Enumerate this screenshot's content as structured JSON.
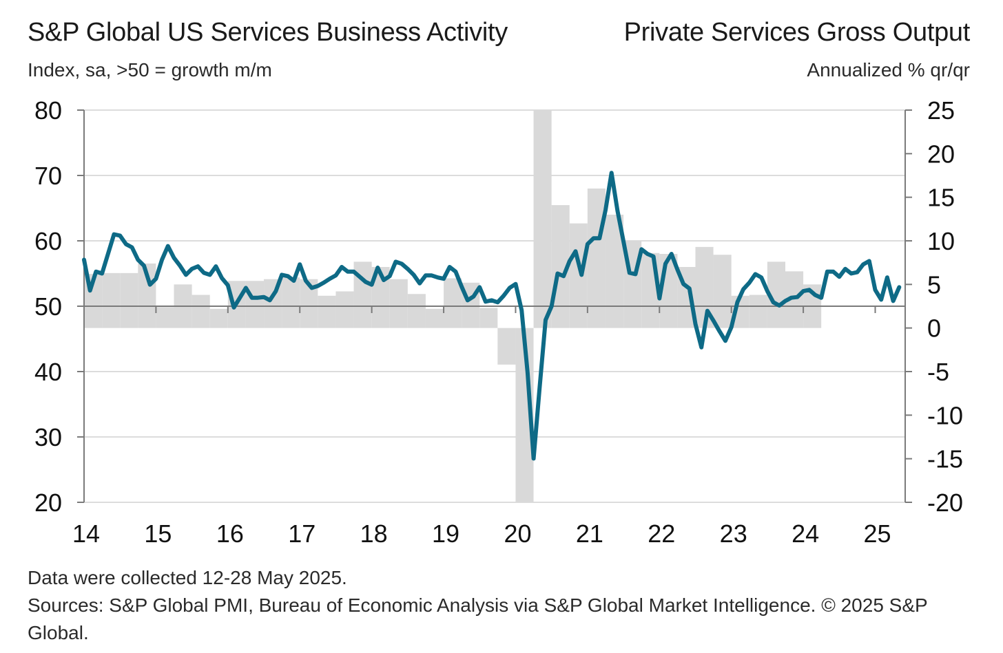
{
  "header": {
    "title_left": "S&P Global US Services Business Activity",
    "subtitle_left": "Index, sa, >50 = growth m/m",
    "title_right": "Private Services Gross Output",
    "subtitle_right": "Annualized % qr/qr"
  },
  "footer": {
    "note": "Data were collected 12-28 May 2025.",
    "sources": "Sources: S&P Global PMI, Bureau of Economic Analysis via S&P Global Market Intelligence. © 2025 S&P Global."
  },
  "colors": {
    "line": "#0e6a86",
    "bars": "#d9d9d9",
    "axis": "#7a7a7a",
    "grid": "#d0d0d0"
  },
  "chart_data": {
    "type": "line",
    "x_ticks": [
      "14",
      "15",
      "16",
      "17",
      "18",
      "19",
      "20",
      "21",
      "22",
      "23",
      "24",
      "25"
    ],
    "y_left": {
      "min": 20,
      "max": 80,
      "ticks": [
        20,
        30,
        40,
        50,
        60,
        70,
        80
      ]
    },
    "y_right": {
      "min": -20,
      "max": 25,
      "ticks": [
        -20,
        -15,
        -10,
        -5,
        0,
        5,
        10,
        15,
        20,
        25
      ]
    },
    "grid": true,
    "series": [
      {
        "axis": "right",
        "type": "bar",
        "frequency": "quarterly",
        "start": "2014Q1",
        "values": [
          6.2,
          6.3,
          6.3,
          7.4,
          2.4,
          5.0,
          3.8,
          2.2,
          5.4,
          5.4,
          5.6,
          5.8,
          5.6,
          3.7,
          4.2,
          7.6,
          7.0,
          5.6,
          3.9,
          2.2,
          5.7,
          5.2,
          2.3,
          -4.2,
          -20.0,
          25.0,
          14.1,
          12.0,
          16.0,
          13.0,
          10.0,
          8.6,
          8.5,
          7.0,
          9.3,
          8.4,
          3.7,
          3.8,
          7.6,
          6.5,
          5.0
        ]
      },
      {
        "axis": "left",
        "type": "line",
        "frequency": "monthly",
        "start": "2014-01",
        "values": [
          57.1,
          52.4,
          55.3,
          55.0,
          58.0,
          61.0,
          60.8,
          59.5,
          59.0,
          57.1,
          56.2,
          53.3,
          54.2,
          57.1,
          59.2,
          57.4,
          56.2,
          54.8,
          55.7,
          56.1,
          55.1,
          54.8,
          56.1,
          54.3,
          53.2,
          49.8,
          51.3,
          52.8,
          51.3,
          51.3,
          51.4,
          50.9,
          52.3,
          54.8,
          54.6,
          53.9,
          56.4,
          53.9,
          52.8,
          53.1,
          53.6,
          54.2,
          54.7,
          56.0,
          55.3,
          55.3,
          54.5,
          53.7,
          53.3,
          55.9,
          54.0,
          54.6,
          56.8,
          56.5,
          55.7,
          54.8,
          53.5,
          54.7,
          54.7,
          54.4,
          54.2,
          56.0,
          55.3,
          53.0,
          50.9,
          51.5,
          52.9,
          50.7,
          50.9,
          50.6,
          51.6,
          52.8,
          53.4,
          49.4,
          39.8,
          26.7,
          37.5,
          47.9,
          50.0,
          55.0,
          54.6,
          56.9,
          58.4,
          54.8,
          59.5,
          60.4,
          60.4,
          64.7,
          70.4,
          64.6,
          59.9,
          55.1,
          54.9,
          58.7,
          58.0,
          57.6,
          51.2,
          56.5,
          58.0,
          55.6,
          53.4,
          52.7,
          47.3,
          43.7,
          49.3,
          47.8,
          46.2,
          44.7,
          46.8,
          50.6,
          52.6,
          53.6,
          54.9,
          54.4,
          52.3,
          50.6,
          50.1,
          50.8,
          51.3,
          51.4,
          52.3,
          52.5,
          51.7,
          51.3,
          55.3,
          55.3,
          54.5,
          55.7,
          55.0,
          55.2,
          56.4,
          56.9,
          52.5,
          51.0,
          54.4,
          50.8,
          52.9
        ]
      }
    ]
  }
}
